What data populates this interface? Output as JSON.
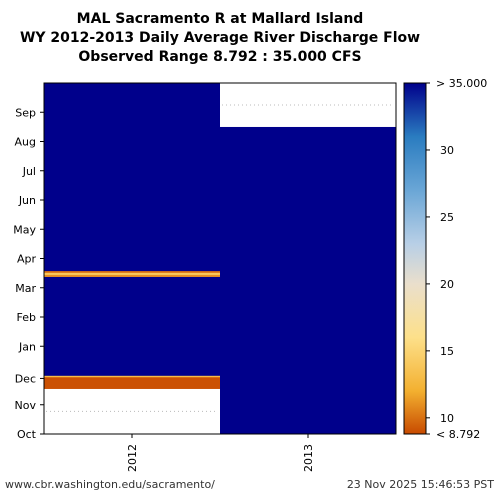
{
  "title_lines": [
    "MAL Sacramento R at Mallard Island",
    "WY 2012-2013 Daily Average River Discharge Flow",
    "Observed Range 8.792 : 35.000 CFS"
  ],
  "footer": {
    "left": "www.cbr.washington.edu/sacramento/",
    "right": "23 Nov 2025 15:46:53 PST"
  },
  "chart_data": {
    "type": "heatmap",
    "title": "MAL Sacramento R at Mallard Island WY 2012-2013 Daily Average River Discharge Flow",
    "subtitle": "Observed Range 8.792 : 35.000 CFS",
    "x": [
      "2012",
      "2013"
    ],
    "y_ticks": [
      "Oct",
      "Nov",
      "Dec",
      "Jan",
      "Feb",
      "Mar",
      "Apr",
      "May",
      "Jun",
      "Jul",
      "Aug",
      "Sep"
    ],
    "y_range_months": [
      0,
      12
    ],
    "color_scale": {
      "min_label": "< 8.792",
      "max_label": "> 35.000",
      "ticks": [
        10,
        15,
        20,
        25,
        30
      ],
      "range": [
        8.792,
        35.0
      ],
      "stops": [
        {
          "value": 8.792,
          "color": "#c84a00"
        },
        {
          "value": 12,
          "color": "#f3b030"
        },
        {
          "value": 16,
          "color": "#fde08a"
        },
        {
          "value": 20,
          "color": "#eadfcc"
        },
        {
          "value": 23,
          "color": "#b8cfe6"
        },
        {
          "value": 27,
          "color": "#6aa6d6"
        },
        {
          "value": 31,
          "color": "#2a7cc0"
        },
        {
          "value": 35,
          "color": "#00008b"
        }
      ]
    },
    "columns": [
      {
        "year": "2012",
        "segments": [
          {
            "start": 0.0,
            "end": 1.55,
            "value": null
          },
          {
            "start": 1.55,
            "end": 1.95,
            "value": 9.0
          },
          {
            "start": 1.95,
            "end": 2.0,
            "value": 13.0
          },
          {
            "start": 2.0,
            "end": 5.38,
            "value": 35.0
          },
          {
            "start": 5.38,
            "end": 5.45,
            "value": 11.0
          },
          {
            "start": 5.45,
            "end": 5.52,
            "value": 14.0
          },
          {
            "start": 5.52,
            "end": 5.58,
            "value": 10.0
          },
          {
            "start": 5.58,
            "end": 12.0,
            "value": 35.0
          }
        ]
      },
      {
        "year": "2013",
        "segments": [
          {
            "start": 0.0,
            "end": 10.5,
            "value": 35.0
          },
          {
            "start": 10.5,
            "end": 12.0,
            "value": null
          }
        ]
      }
    ],
    "grid": false,
    "legend": "right"
  }
}
